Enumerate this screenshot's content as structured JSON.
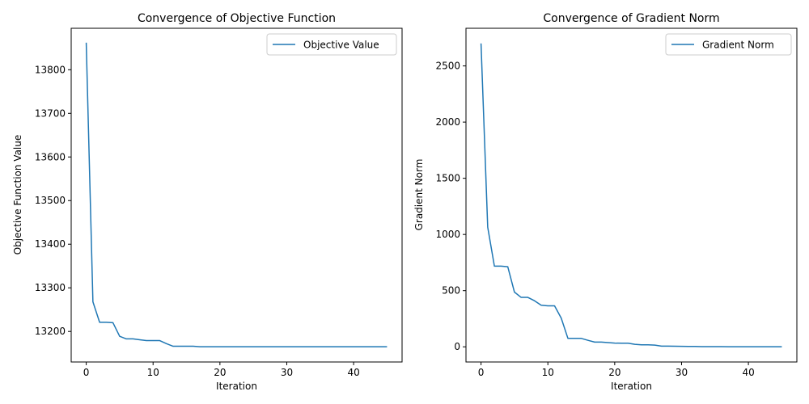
{
  "chart_data": [
    {
      "type": "line",
      "title": "Convergence of Objective Function",
      "xlabel": "Iteration",
      "ylabel": "Objective Function Value",
      "xlim": [
        -2.25,
        47.25
      ],
      "ylim": [
        13130,
        13895
      ],
      "xticks": [
        0,
        10,
        20,
        30,
        40
      ],
      "xtick_labels": [
        "0",
        "10",
        "20",
        "30",
        "40"
      ],
      "yticks": [
        13200,
        13300,
        13400,
        13500,
        13600,
        13700,
        13800
      ],
      "ytick_labels": [
        "13200",
        "13300",
        "13400",
        "13500",
        "13600",
        "13700",
        "13800"
      ],
      "grid": false,
      "legend_position": "top-right",
      "color": "#1f77b4",
      "series": [
        {
          "name": "Objective Value",
          "x": [
            0,
            1,
            2,
            3,
            4,
            5,
            6,
            7,
            8,
            9,
            10,
            11,
            12,
            13,
            14,
            15,
            16,
            17,
            18,
            19,
            20,
            21,
            22,
            23,
            24,
            25,
            26,
            27,
            28,
            29,
            30,
            31,
            32,
            33,
            34,
            35,
            36,
            37,
            38,
            39,
            40,
            41,
            42,
            43,
            44,
            45
          ],
          "y": [
            13862,
            13268,
            13221,
            13221,
            13220,
            13189,
            13183,
            13183,
            13181,
            13179,
            13179,
            13179,
            13172,
            13166,
            13166,
            13166,
            13166,
            13165,
            13165,
            13165,
            13165,
            13165,
            13165,
            13165,
            13165,
            13165,
            13165,
            13165,
            13165,
            13165,
            13165,
            13165,
            13165,
            13165,
            13165,
            13165,
            13165,
            13165,
            13165,
            13165,
            13165,
            13165,
            13165,
            13165,
            13165,
            13165
          ]
        }
      ]
    },
    {
      "type": "line",
      "title": "Convergence of Gradient Norm",
      "xlabel": "Iteration",
      "ylabel": "Gradient Norm",
      "xlim": [
        -2.25,
        47.25
      ],
      "ylim": [
        -135,
        2835
      ],
      "xticks": [
        0,
        10,
        20,
        30,
        40
      ],
      "xtick_labels": [
        "0",
        "10",
        "20",
        "30",
        "40"
      ],
      "yticks": [
        0,
        500,
        1000,
        1500,
        2000,
        2500
      ],
      "ytick_labels": [
        "0",
        "500",
        "1000",
        "1500",
        "2000",
        "2500"
      ],
      "grid": false,
      "legend_position": "top-right",
      "color": "#1f77b4",
      "series": [
        {
          "name": "Gradient Norm",
          "x": [
            0,
            1,
            2,
            3,
            4,
            5,
            6,
            7,
            8,
            9,
            10,
            11,
            12,
            13,
            14,
            15,
            16,
            17,
            18,
            19,
            20,
            21,
            22,
            23,
            24,
            25,
            26,
            27,
            28,
            29,
            30,
            31,
            32,
            33,
            34,
            35,
            36,
            37,
            38,
            39,
            40,
            41,
            42,
            43,
            44,
            45
          ],
          "y": [
            2700,
            1065,
            718,
            718,
            713,
            487,
            440,
            440,
            410,
            370,
            365,
            365,
            255,
            75,
            75,
            75,
            58,
            42,
            42,
            38,
            33,
            32,
            32,
            22,
            18,
            18,
            15,
            6,
            6,
            5,
            4,
            3,
            3,
            2,
            2,
            2,
            2,
            1,
            1,
            1,
            1,
            1,
            1,
            1,
            1,
            1
          ]
        }
      ]
    }
  ]
}
